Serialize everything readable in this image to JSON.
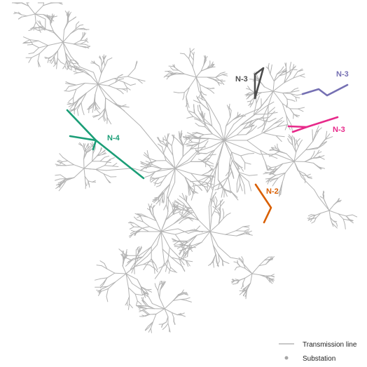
{
  "colors": {
    "grid_line": "#b3b3b3",
    "substation": "#a6a6a6",
    "contingency_gray": "#4d4d4d",
    "contingency_purple": "#7570b3",
    "contingency_pink": "#e7298a",
    "contingency_orange": "#d95f02",
    "contingency_green": "#1b9e77"
  },
  "contingencies": [
    {
      "id": "gray",
      "label": "N-3",
      "color": "#4d4d4d"
    },
    {
      "id": "purple",
      "label": "N-3",
      "color": "#7570b3"
    },
    {
      "id": "pink",
      "label": "N-3",
      "color": "#e7298a"
    },
    {
      "id": "orange",
      "label": "N-2",
      "color": "#d95f02"
    },
    {
      "id": "green",
      "label": "N-4",
      "color": "#1b9e77"
    }
  ],
  "legend": {
    "line_label": "Transmission line",
    "substation_label": "Substation"
  }
}
